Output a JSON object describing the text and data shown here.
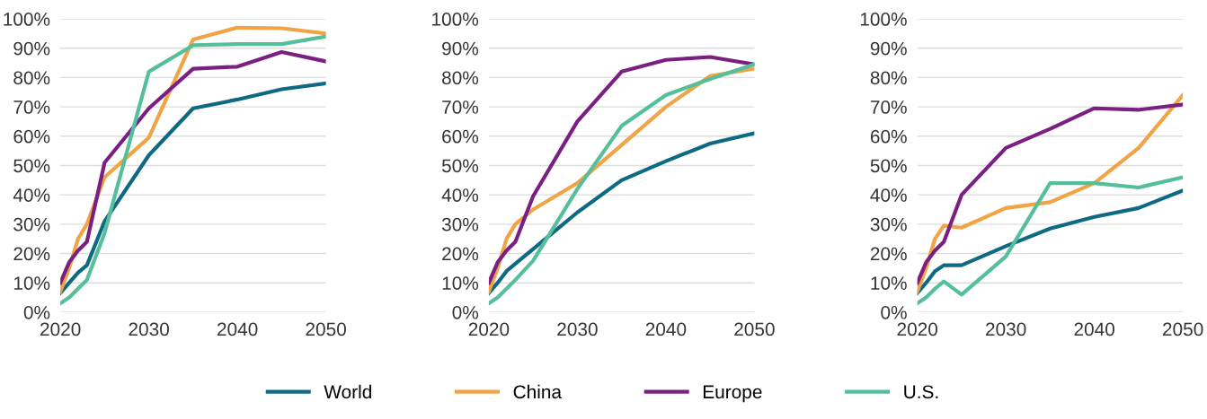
{
  "chart_data": [
    {
      "type": "line",
      "x": [
        2020,
        2021,
        2022,
        2023,
        2025,
        2030,
        2035,
        2040,
        2045,
        2050
      ],
      "xlim": [
        2020,
        2050
      ],
      "xticks": [
        2020,
        2030,
        2040,
        2050
      ],
      "ylim": [
        0,
        100
      ],
      "yticks": [
        {
          "value": 0,
          "label": "0%"
        },
        {
          "value": 10,
          "label": "10%"
        },
        {
          "value": 20,
          "label": "20%"
        },
        {
          "value": 30,
          "label": "30%"
        },
        {
          "value": 40,
          "label": "40%"
        },
        {
          "value": 50,
          "label": "50%"
        },
        {
          "value": 60,
          "label": "60%"
        },
        {
          "value": 70,
          "label": "70%"
        },
        {
          "value": 80,
          "label": "80%"
        },
        {
          "value": 90,
          "label": "90%"
        },
        {
          "value": 100,
          "label": "100%"
        }
      ],
      "grid": "y",
      "legend": "bottom",
      "series": [
        {
          "name": "World",
          "color": "#0e6a82",
          "values": [
            6.5,
            10,
            13.5,
            16,
            31,
            53.5,
            69.5,
            72.5,
            76,
            78
          ]
        },
        {
          "name": "China",
          "color": "#f0a445",
          "values": [
            7,
            15,
            25,
            30,
            46,
            59.5,
            93,
            97,
            96.8,
            95
          ]
        },
        {
          "name": "Europe",
          "color": "#7b1f82",
          "values": [
            10,
            17,
            21,
            24,
            51,
            69.5,
            83,
            83.7,
            88.7,
            85.5
          ]
        },
        {
          "name": "U.S.",
          "color": "#55bf9b",
          "values": [
            3,
            5,
            8,
            11,
            27,
            82,
            91,
            91.4,
            91.4,
            94
          ]
        }
      ]
    },
    {
      "type": "line",
      "x": [
        2020,
        2021,
        2022,
        2023,
        2025,
        2030,
        2035,
        2040,
        2045,
        2050
      ],
      "xlim": [
        2020,
        2050
      ],
      "xticks": [
        2020,
        2030,
        2040,
        2050
      ],
      "ylim": [
        0,
        100
      ],
      "yticks": [
        {
          "value": 0,
          "label": "0%"
        },
        {
          "value": 10,
          "label": "10%"
        },
        {
          "value": 20,
          "label": "20%"
        },
        {
          "value": 30,
          "label": "30%"
        },
        {
          "value": 40,
          "label": "40%"
        },
        {
          "value": 50,
          "label": "50%"
        },
        {
          "value": 60,
          "label": "60%"
        },
        {
          "value": 70,
          "label": "70%"
        },
        {
          "value": 80,
          "label": "80%"
        },
        {
          "value": 90,
          "label": "90%"
        },
        {
          "value": 100,
          "label": "100%"
        }
      ],
      "grid": "y",
      "legend": "bottom",
      "series": [
        {
          "name": "World",
          "color": "#0e6a82",
          "values": [
            6.5,
            10,
            14,
            16.5,
            21.5,
            34,
            45,
            51.5,
            57.5,
            61
          ]
        },
        {
          "name": "China",
          "color": "#f0a445",
          "values": [
            7,
            15,
            25,
            30,
            35,
            44,
            57,
            70,
            80.5,
            83
          ]
        },
        {
          "name": "Europe",
          "color": "#7b1f82",
          "values": [
            10,
            17,
            21,
            24,
            39.5,
            65,
            82,
            86,
            87,
            84.5
          ]
        },
        {
          "name": "U.S.",
          "color": "#55bf9b",
          "values": [
            3,
            5,
            8,
            11,
            17.5,
            42,
            63.5,
            74,
            79.5,
            84.5
          ]
        }
      ]
    },
    {
      "type": "line",
      "x": [
        2020,
        2021,
        2022,
        2023,
        2025,
        2030,
        2035,
        2040,
        2045,
        2050
      ],
      "xlim": [
        2020,
        2050
      ],
      "xticks": [
        2020,
        2030,
        2040,
        2050
      ],
      "ylim": [
        0,
        100
      ],
      "yticks": [
        {
          "value": 0,
          "label": "0%"
        },
        {
          "value": 10,
          "label": "10%"
        },
        {
          "value": 20,
          "label": "20%"
        },
        {
          "value": 30,
          "label": "30%"
        },
        {
          "value": 40,
          "label": "40%"
        },
        {
          "value": 50,
          "label": "50%"
        },
        {
          "value": 60,
          "label": "60%"
        },
        {
          "value": 70,
          "label": "70%"
        },
        {
          "value": 80,
          "label": "80%"
        },
        {
          "value": 90,
          "label": "90%"
        },
        {
          "value": 100,
          "label": "100%"
        }
      ],
      "grid": "y",
      "legend": "bottom",
      "series": [
        {
          "name": "World",
          "color": "#0e6a82",
          "values": [
            6.5,
            10,
            14,
            16,
            16,
            22.5,
            28.5,
            32.5,
            35.5,
            41.5
          ]
        },
        {
          "name": "China",
          "color": "#f0a445",
          "values": [
            7,
            15,
            25,
            29.5,
            28.8,
            35.5,
            37.5,
            44,
            56,
            74
          ]
        },
        {
          "name": "Europe",
          "color": "#7b1f82",
          "values": [
            10,
            17,
            21,
            24,
            40,
            56,
            62.5,
            69.5,
            69,
            70.8
          ]
        },
        {
          "name": "U.S.",
          "color": "#55bf9b",
          "values": [
            3,
            5,
            8,
            10.5,
            6,
            19,
            44,
            44,
            42.5,
            46
          ]
        }
      ]
    }
  ]
}
